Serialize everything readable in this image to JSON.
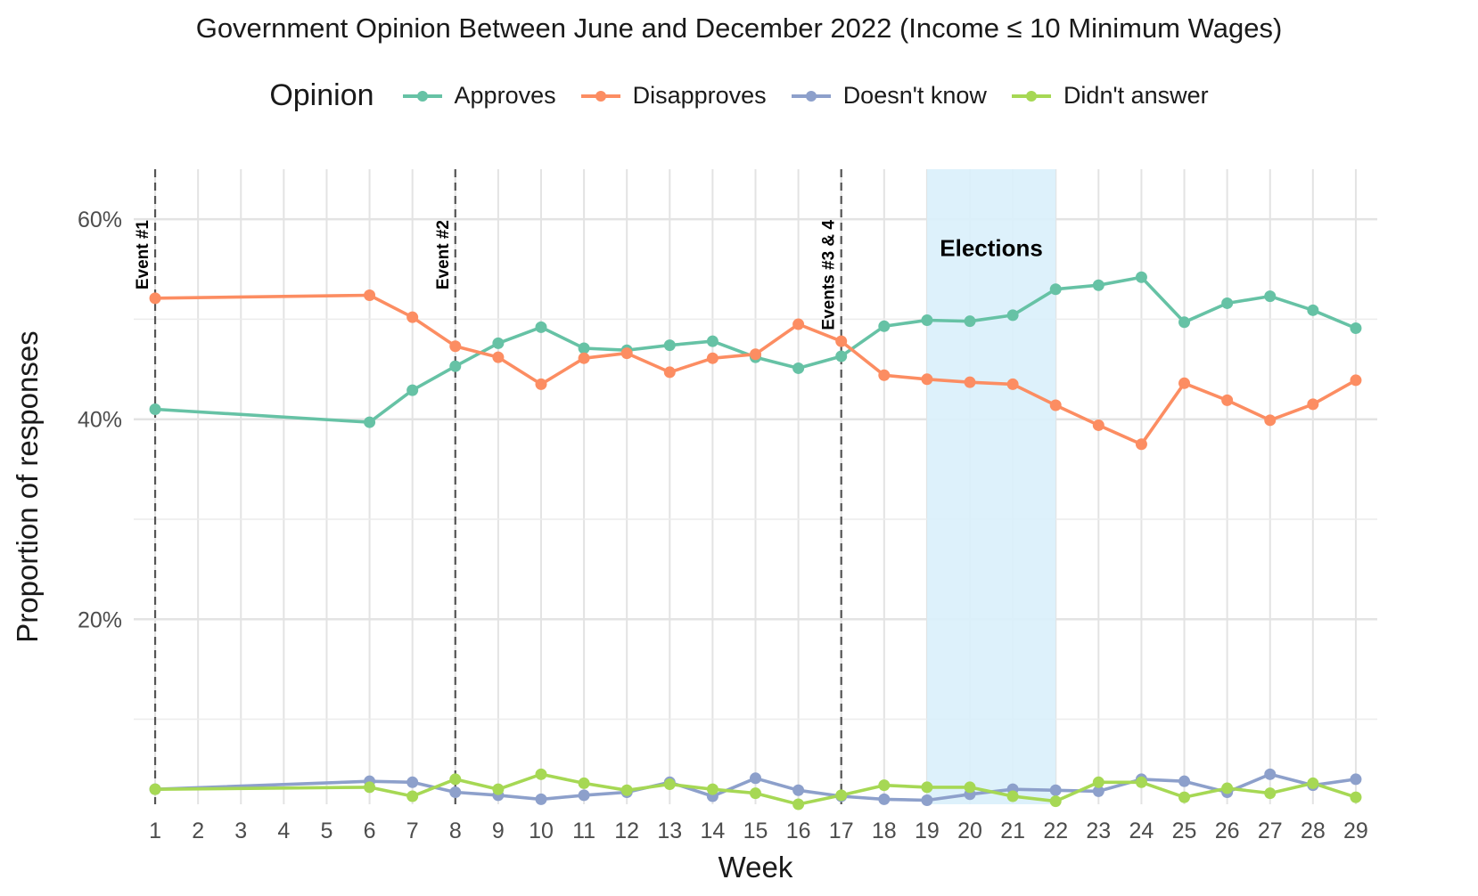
{
  "chart_data": {
    "type": "line",
    "title": "Government Opinion Between June and December 2022 (Income ≤ 10 Minimum Wages)",
    "xlabel": "Week",
    "ylabel": "Proportion of responses",
    "x_ticks": [
      1,
      2,
      3,
      4,
      5,
      6,
      7,
      8,
      9,
      10,
      11,
      12,
      13,
      14,
      15,
      16,
      17,
      18,
      19,
      20,
      21,
      22,
      23,
      24,
      25,
      26,
      27,
      28,
      29
    ],
    "xlim": [
      0.5,
      29.5
    ],
    "ylim": [
      1.5,
      65
    ],
    "y_ticks": [
      20,
      40,
      60
    ],
    "y_tick_labels": [
      "20%",
      "40%",
      "60%"
    ],
    "grid": true,
    "legend": {
      "title": "Opinion",
      "position": "top"
    },
    "x": [
      1,
      6,
      7,
      8,
      9,
      10,
      11,
      12,
      13,
      14,
      15,
      16,
      17,
      18,
      19,
      20,
      21,
      22,
      23,
      24,
      25,
      26,
      27,
      28,
      29
    ],
    "series": [
      {
        "name": "Approves",
        "color": "#66c2a5",
        "values": [
          41.0,
          39.7,
          42.9,
          45.3,
          47.6,
          49.2,
          47.1,
          46.9,
          47.4,
          47.8,
          46.2,
          45.1,
          46.3,
          49.3,
          49.9,
          49.8,
          50.4,
          53.0,
          53.4,
          54.2,
          49.7,
          51.6,
          52.3,
          50.9,
          49.1
        ]
      },
      {
        "name": "Disapproves",
        "color": "#fc8d62",
        "values": [
          52.1,
          52.4,
          50.2,
          47.3,
          46.2,
          43.5,
          46.1,
          46.6,
          44.7,
          46.1,
          46.5,
          49.5,
          47.8,
          44.4,
          44.0,
          43.7,
          43.5,
          41.4,
          39.4,
          37.5,
          43.6,
          41.9,
          39.9,
          41.5,
          43.9
        ]
      },
      {
        "name": "Doesn't know",
        "color": "#8da0cb",
        "values": [
          3.0,
          3.8,
          3.7,
          2.7,
          2.4,
          2.0,
          2.4,
          2.7,
          3.7,
          2.3,
          4.1,
          2.9,
          2.3,
          2.0,
          1.9,
          2.5,
          3.0,
          2.9,
          2.8,
          4.0,
          3.8,
          2.7,
          4.5,
          3.4,
          4.0
        ]
      },
      {
        "name": "Didn't answer",
        "color": "#a6d854",
        "values": [
          3.0,
          3.2,
          2.3,
          4.0,
          3.0,
          4.5,
          3.6,
          2.9,
          3.5,
          3.0,
          2.6,
          1.5,
          2.4,
          3.4,
          3.2,
          3.2,
          2.3,
          1.8,
          3.7,
          3.7,
          2.2,
          3.1,
          2.6,
          3.6,
          2.2
        ]
      }
    ],
    "annotations": [
      {
        "label": "Event #1",
        "x": 1
      },
      {
        "label": "Event #2",
        "x": 8
      },
      {
        "label": "Events #3 & 4",
        "x": 17
      }
    ],
    "shaded_region": {
      "label": "Elections",
      "x_start": 19,
      "x_end": 22,
      "color": "#d9f0fb"
    }
  }
}
